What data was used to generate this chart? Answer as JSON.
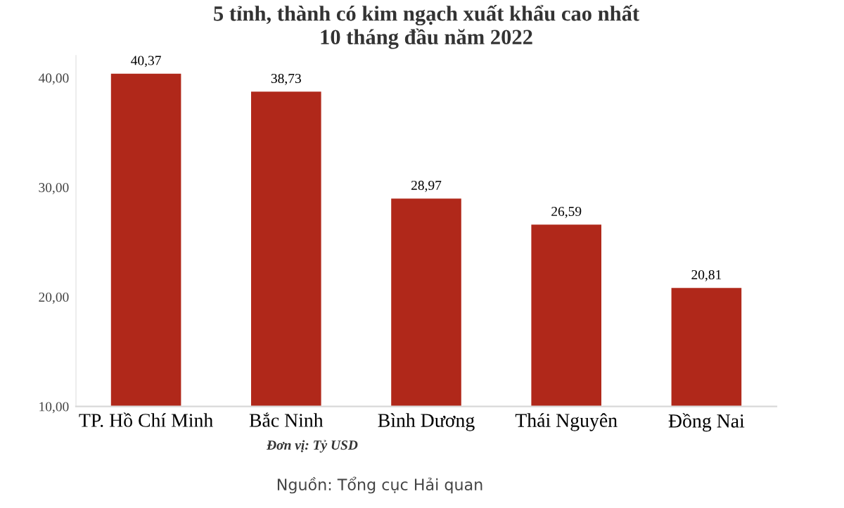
{
  "chart_data": {
    "type": "bar",
    "title": "5 tỉnh, thành có kim ngạch xuất khẩu cao nhất\n10 tháng đầu năm 2022",
    "categories": [
      "TP. Hồ Chí Minh",
      "Bắc Ninh",
      "Bình Dương",
      "Thái Nguyên",
      "Đồng Nai"
    ],
    "values": [
      40.37,
      38.73,
      28.97,
      26.59,
      20.81
    ],
    "value_labels": [
      "40,37",
      "38,73",
      "28,97",
      "26,59",
      "20,81"
    ],
    "color": "#b0281a",
    "ylim": [
      10,
      42
    ],
    "yticks": [
      {
        "value": 10,
        "label": "10,00"
      },
      {
        "value": 20,
        "label": "20,00"
      },
      {
        "value": 30,
        "label": "30,00"
      },
      {
        "value": 40,
        "label": "40,00"
      }
    ],
    "grid": false,
    "annotations": [
      "Đơn vị: Tỷ USD",
      "Nguồn: Tổng cục Hải quan"
    ]
  }
}
